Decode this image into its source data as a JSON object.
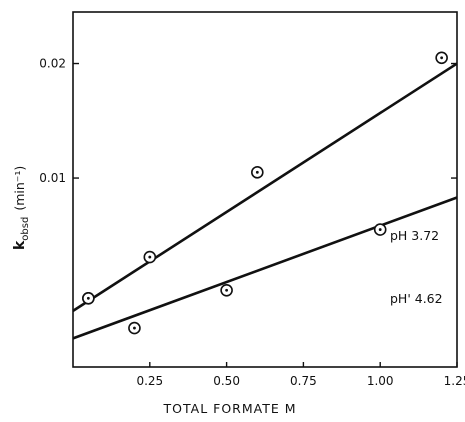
{
  "chart_data": {
    "type": "scatter",
    "title": "",
    "xlabel": "TOTAL FORMATE M",
    "ylabel": {
      "main": "k",
      "sub": "obsd",
      "unit": "(min⁻¹)"
    },
    "xlim": [
      0,
      1.25
    ],
    "ylim": [
      -0.0065,
      0.0245
    ],
    "grid": false,
    "legend": "none",
    "x_ticks": [
      {
        "value": 0.25,
        "label": "0.25"
      },
      {
        "value": 0.5,
        "label": "0.50"
      },
      {
        "value": 0.75,
        "label": "0.75"
      },
      {
        "value": 1.0,
        "label": "1.00"
      },
      {
        "value": 1.25,
        "label": "1.25"
      }
    ],
    "y_ticks": [
      {
        "value": 0.01,
        "label": "0.01"
      },
      {
        "value": 0.02,
        "label": "0.02"
      }
    ],
    "series": [
      {
        "label_text": "pH 3.72",
        "points": [
          {
            "x": 0.05,
            "y": -0.0005
          },
          {
            "x": 0.25,
            "y": 0.0031
          },
          {
            "x": 0.6,
            "y": 0.0105
          },
          {
            "x": 1.2,
            "y": 0.0205
          }
        ],
        "fit": {
          "x": [
            0.0,
            1.25
          ],
          "y": [
            -0.0016,
            0.02
          ]
        }
      },
      {
        "label_text": "pH' 4.62",
        "points": [
          {
            "x": 0.05,
            "y": -0.0005
          },
          {
            "x": 0.2,
            "y": -0.0031
          },
          {
            "x": 0.5,
            "y": 0.0002
          },
          {
            "x": 1.0,
            "y": 0.0055
          }
        ],
        "fit": {
          "x": [
            0.0,
            1.25
          ],
          "y": [
            -0.004,
            0.0083
          ]
        }
      }
    ]
  }
}
